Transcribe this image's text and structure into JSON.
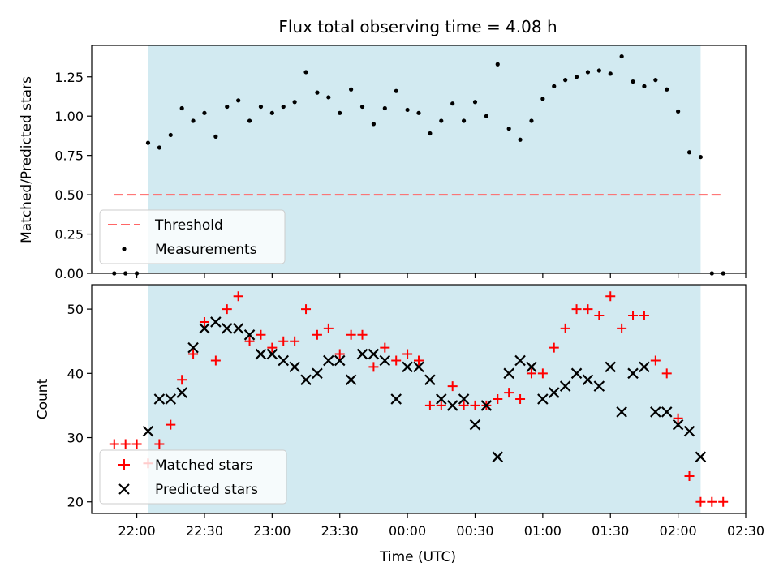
{
  "chart_data": [
    {
      "type": "scatter",
      "panel": "top",
      "title": "Flux total observing time = 4.08 h",
      "ylabel": "Matched/Predicted stars",
      "ylim": [
        0.0,
        1.45
      ],
      "yticks": [
        "0.00",
        "0.25",
        "0.50",
        "0.75",
        "1.00",
        "1.25"
      ],
      "grid": false,
      "legend_position": "lower-left",
      "observing_window": {
        "start": "22:05",
        "end": "02:10",
        "color": "#add8e6"
      },
      "threshold": {
        "name": "Threshold",
        "value": 0.5,
        "x_start": "21:50",
        "x_end": "02:20",
        "color": "#ff6666",
        "style": "dashed"
      },
      "series": [
        {
          "name": "Measurements",
          "color": "#000000",
          "marker": "dot",
          "x": [
            "21:50",
            "21:55",
            "22:00",
            "22:05",
            "22:10",
            "22:15",
            "22:20",
            "22:25",
            "22:30",
            "22:35",
            "22:40",
            "22:45",
            "22:50",
            "22:55",
            "23:00",
            "23:05",
            "23:10",
            "23:15",
            "23:20",
            "23:25",
            "23:30",
            "23:35",
            "23:40",
            "23:45",
            "23:50",
            "23:55",
            "00:00",
            "00:05",
            "00:10",
            "00:15",
            "00:20",
            "00:25",
            "00:30",
            "00:35",
            "00:40",
            "00:45",
            "00:50",
            "00:55",
            "01:00",
            "01:05",
            "01:10",
            "01:15",
            "01:20",
            "01:25",
            "01:30",
            "01:35",
            "01:40",
            "01:45",
            "01:50",
            "01:55",
            "02:00",
            "02:05",
            "02:10",
            "02:15",
            "02:20"
          ],
          "values": [
            0.0,
            0.0,
            0.0,
            0.83,
            0.8,
            0.88,
            1.05,
            0.97,
            1.02,
            0.87,
            1.06,
            1.1,
            0.97,
            1.06,
            1.02,
            1.06,
            1.09,
            1.28,
            1.15,
            1.12,
            1.02,
            1.17,
            1.06,
            0.95,
            1.05,
            1.16,
            1.04,
            1.02,
            0.89,
            0.97,
            1.08,
            0.97,
            1.09,
            1.0,
            1.33,
            0.92,
            0.85,
            0.97,
            1.11,
            1.19,
            1.23,
            1.25,
            1.28,
            1.29,
            1.27,
            1.38,
            1.22,
            1.19,
            1.23,
            1.17,
            1.03,
            0.77,
            0.74,
            0.0,
            0.0
          ]
        }
      ]
    },
    {
      "type": "scatter",
      "panel": "bottom",
      "xlabel": "Time (UTC)",
      "ylabel": "Count",
      "ylim": [
        18.2,
        53.8
      ],
      "yticks": [
        "20",
        "30",
        "40",
        "50"
      ],
      "xlim": [
        "21:40",
        "02:30"
      ],
      "xticks": [
        "22:00",
        "22:30",
        "23:00",
        "23:30",
        "00:00",
        "00:30",
        "01:00",
        "01:30",
        "02:00",
        "02:30"
      ],
      "grid": false,
      "legend_position": "lower-left",
      "observing_window": {
        "start": "22:05",
        "end": "02:10",
        "color": "#add8e6"
      },
      "series": [
        {
          "name": "Matched stars",
          "color": "#ff0000",
          "marker": "plus",
          "x": [
            "21:50",
            "21:55",
            "22:00",
            "22:05",
            "22:10",
            "22:15",
            "22:20",
            "22:25",
            "22:30",
            "22:35",
            "22:40",
            "22:45",
            "22:50",
            "22:55",
            "23:00",
            "23:05",
            "23:10",
            "23:15",
            "23:20",
            "23:25",
            "23:30",
            "23:35",
            "23:40",
            "23:45",
            "23:50",
            "23:55",
            "00:00",
            "00:05",
            "00:10",
            "00:15",
            "00:20",
            "00:25",
            "00:30",
            "00:35",
            "00:40",
            "00:45",
            "00:50",
            "00:55",
            "01:00",
            "01:05",
            "01:10",
            "01:15",
            "01:20",
            "01:25",
            "01:30",
            "01:35",
            "01:40",
            "01:45",
            "01:50",
            "01:55",
            "02:00",
            "02:05",
            "02:10",
            "02:15",
            "02:20"
          ],
          "values": [
            29,
            29,
            29,
            26,
            29,
            32,
            39,
            43,
            48,
            42,
            50,
            52,
            45,
            46,
            44,
            45,
            45,
            50,
            46,
            47,
            43,
            46,
            46,
            41,
            44,
            42,
            43,
            42,
            35,
            35,
            38,
            35,
            35,
            35,
            36,
            37,
            36,
            40,
            40,
            44,
            47,
            50,
            50,
            49,
            52,
            47,
            49,
            49,
            42,
            40,
            33,
            24,
            20,
            20,
            20
          ]
        },
        {
          "name": "Predicted stars",
          "color": "#000000",
          "marker": "x",
          "x": [
            "22:05",
            "22:10",
            "22:15",
            "22:20",
            "22:25",
            "22:30",
            "22:35",
            "22:40",
            "22:45",
            "22:50",
            "22:55",
            "23:00",
            "23:05",
            "23:10",
            "23:15",
            "23:20",
            "23:25",
            "23:30",
            "23:35",
            "23:40",
            "23:45",
            "23:50",
            "23:55",
            "00:00",
            "00:05",
            "00:10",
            "00:15",
            "00:20",
            "00:25",
            "00:30",
            "00:35",
            "00:40",
            "00:45",
            "00:50",
            "00:55",
            "01:00",
            "01:05",
            "01:10",
            "01:15",
            "01:20",
            "01:25",
            "01:30",
            "01:35",
            "01:40",
            "01:45",
            "01:50",
            "01:55",
            "02:00",
            "02:05",
            "02:10"
          ],
          "values": [
            31,
            36,
            36,
            37,
            44,
            47,
            48,
            47,
            47,
            46,
            43,
            43,
            42,
            41,
            39,
            40,
            42,
            42,
            39,
            43,
            43,
            42,
            36,
            41,
            41,
            39,
            36,
            35,
            36,
            32,
            35,
            27,
            40,
            42,
            41,
            36,
            37,
            38,
            40,
            39,
            38,
            41,
            34,
            40,
            41,
            34,
            34,
            32,
            31,
            27
          ]
        }
      ]
    }
  ]
}
